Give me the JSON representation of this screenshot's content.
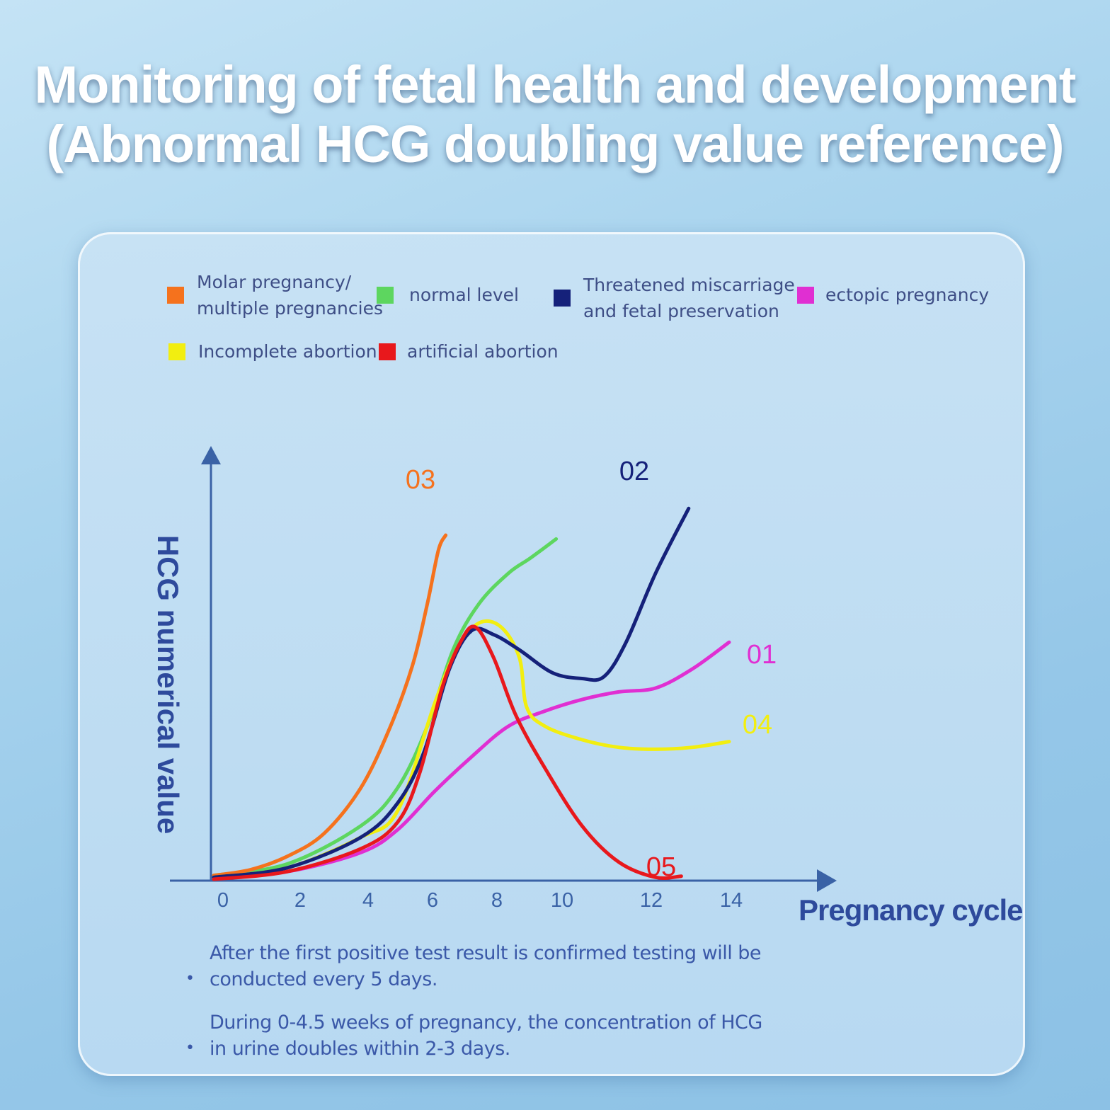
{
  "title": {
    "line1": "Monitoring of fetal health and development",
    "line2": "(Abnormal HCG doubling value reference)"
  },
  "legend": [
    {
      "label_line1": "Molar pregnancy/",
      "label_line2": "multiple pregnancies",
      "color": "#f5721d"
    },
    {
      "label_line1": "normal level",
      "label_line2": "",
      "color": "#5dd65f"
    },
    {
      "label_line1": "Threatened miscarriage",
      "label_line2": "and fetal preservation",
      "color": "#15217a"
    },
    {
      "label_line1": "ectopic pregnancy",
      "label_line2": "",
      "color": "#e02fd2"
    },
    {
      "label_line1": "Incomplete abortion",
      "label_line2": "",
      "color": "#f2ee10"
    },
    {
      "label_line1": "artificial abortion",
      "label_line2": "",
      "color": "#e8181c"
    }
  ],
  "chart_data": {
    "type": "line",
    "xlabel": "Pregnancy cycle",
    "ylabel": "HCG numerical value",
    "x_ticks": [
      "0",
      "2",
      "4",
      "6",
      "8",
      "10",
      "12",
      "14"
    ],
    "xlim": [
      0,
      14
    ],
    "ylim": [
      0,
      100
    ],
    "grid": false,
    "y_tick_labels_shown": false,
    "series": [
      {
        "name": "01",
        "legend_ref": "ectopic pregnancy",
        "color": "#e02fd2",
        "points": [
          [
            0,
            0.5
          ],
          [
            2,
            2
          ],
          [
            4,
            7
          ],
          [
            5,
            13
          ],
          [
            6,
            23
          ],
          [
            7,
            32
          ],
          [
            8,
            40
          ],
          [
            9,
            44
          ],
          [
            10,
            47
          ],
          [
            11,
            49
          ],
          [
            12,
            50
          ],
          [
            13,
            55
          ],
          [
            14,
            62
          ]
        ]
      },
      {
        "name": "02",
        "legend_ref": "Threatened miscarriage and fetal preservation",
        "color": "#15217a",
        "points": [
          [
            0,
            0.5
          ],
          [
            2,
            3
          ],
          [
            4,
            11
          ],
          [
            5,
            20
          ],
          [
            5.7,
            33
          ],
          [
            6.4,
            55
          ],
          [
            7,
            65
          ],
          [
            7.6,
            64
          ],
          [
            8.3,
            60
          ],
          [
            9.2,
            54
          ],
          [
            10,
            52.5
          ],
          [
            10.6,
            53
          ],
          [
            11.2,
            62
          ],
          [
            12,
            80
          ],
          [
            12.9,
            97
          ]
        ]
      },
      {
        "name": "03",
        "legend_ref": "Molar pregnancy/multiple pregnancies",
        "color": "#f5721d",
        "points": [
          [
            0,
            1
          ],
          [
            1,
            2.5
          ],
          [
            2,
            6
          ],
          [
            3,
            12
          ],
          [
            4,
            24
          ],
          [
            4.8,
            40
          ],
          [
            5.4,
            56
          ],
          [
            5.8,
            72
          ],
          [
            6.1,
            86
          ],
          [
            6.3,
            90
          ]
        ]
      },
      {
        "name": "04",
        "legend_ref": "Incomplete abortion",
        "color": "#f2ee10",
        "points": [
          [
            0,
            0.5
          ],
          [
            2,
            3
          ],
          [
            4,
            11
          ],
          [
            5,
            18
          ],
          [
            6,
            46
          ],
          [
            6.6,
            60
          ],
          [
            7.2,
            67
          ],
          [
            7.8,
            66
          ],
          [
            8.3,
            58
          ],
          [
            8.5,
            45
          ],
          [
            9,
            40
          ],
          [
            10,
            36.5
          ],
          [
            11,
            34.5
          ],
          [
            12,
            34
          ],
          [
            13,
            34.5
          ],
          [
            14,
            36
          ]
        ]
      },
      {
        "name": "05",
        "legend_ref": "artificial abortion",
        "color": "#e8181c",
        "points": [
          [
            0,
            0
          ],
          [
            2,
            2
          ],
          [
            4,
            8
          ],
          [
            5,
            15
          ],
          [
            5.6,
            28
          ],
          [
            6.2,
            50
          ],
          [
            6.7,
            62
          ],
          [
            7.1,
            66
          ],
          [
            7.6,
            58
          ],
          [
            8.2,
            43
          ],
          [
            9,
            29
          ],
          [
            10,
            14
          ],
          [
            11,
            4.5
          ],
          [
            12,
            0.5
          ],
          [
            12.7,
            0.8
          ]
        ]
      },
      {
        "name": "",
        "legend_ref": "normal level",
        "color": "#5dd65f",
        "points": [
          [
            0,
            1
          ],
          [
            2,
            4
          ],
          [
            4,
            14
          ],
          [
            5,
            24
          ],
          [
            5.8,
            40
          ],
          [
            6.5,
            60
          ],
          [
            7.2,
            72
          ],
          [
            8,
            80
          ],
          [
            8.6,
            84
          ],
          [
            9.3,
            89
          ]
        ]
      }
    ]
  },
  "notes": [
    "After the first positive test result is confirmed testing will be conducted every 5 days.",
    "During 0-4.5 weeks of pregnancy, the concentration of HCG in urine doubles within 2-3 days."
  ]
}
